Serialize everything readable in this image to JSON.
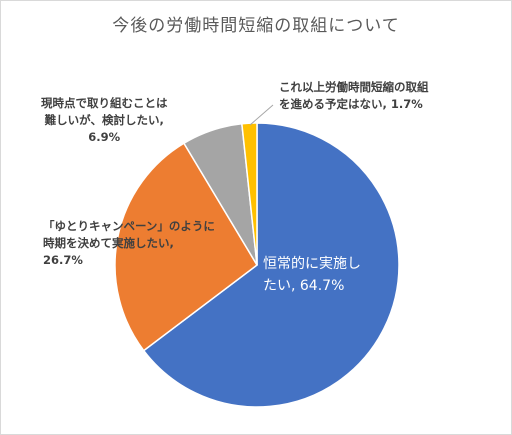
{
  "chart_data": {
    "type": "pie",
    "title": "今後の労働時間短縮の取組について",
    "slices": [
      {
        "label": "恒常的に実施したい",
        "value": 64.7,
        "display": "恒常的に実施し\nたい, 64.7%",
        "color": "#4472c4"
      },
      {
        "label": "「ゆとりキャンペーン」のように時期を決めて実施したい",
        "value": 26.7,
        "display": "「ゆとりキャンペーン」のように\n時期を決めて実施したい,\n26.7%",
        "color": "#ed7d31"
      },
      {
        "label": "現時点で取り組むことは難しいが、検討したい",
        "value": 6.9,
        "display": "現時点で取り組むことは\n難しいが、検討したい,\n6.9%",
        "color": "#a5a5a5"
      },
      {
        "label": "これ以上労働時間短縮の取組を進める予定はない",
        "value": 1.7,
        "display": "これ以上労働時間短縮の取組\nを進める予定はない, 1.7%",
        "color": "#ffc000"
      }
    ],
    "legend": "none"
  }
}
